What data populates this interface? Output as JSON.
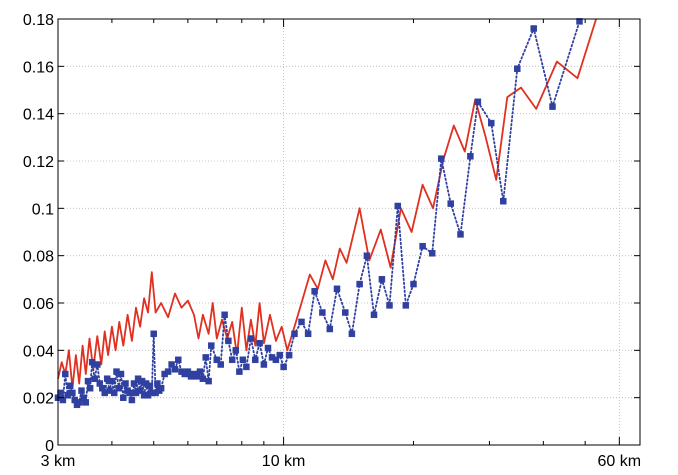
{
  "chart_data": {
    "type": "line",
    "title": "",
    "xlabel": "",
    "ylabel": "",
    "x_scale": "log",
    "xlim": [
      3,
      67
    ],
    "ylim": [
      0,
      0.18
    ],
    "grid": true,
    "legend": "none",
    "x_ticks": [
      {
        "value": 3,
        "label": "3 km"
      },
      {
        "value": 10,
        "label": "10 km"
      },
      {
        "value": 60,
        "label": "60 km"
      }
    ],
    "y_ticks": [
      {
        "value": 0,
        "label": "0"
      },
      {
        "value": 0.02,
        "label": "0.02"
      },
      {
        "value": 0.04,
        "label": "0.04"
      },
      {
        "value": 0.06,
        "label": "0.06"
      },
      {
        "value": 0.08,
        "label": "0.08"
      },
      {
        "value": 0.1,
        "label": "0.1"
      },
      {
        "value": 0.12,
        "label": "0.12"
      },
      {
        "value": 0.14,
        "label": "0.14"
      },
      {
        "value": 0.16,
        "label": "0.16"
      },
      {
        "value": 0.18,
        "label": "0.18"
      }
    ],
    "series": [
      {
        "color": "#e03020",
        "style": "solid",
        "marker": "none",
        "points": [
          [
            3.0,
            0.028
          ],
          [
            3.06,
            0.035
          ],
          [
            3.12,
            0.03
          ],
          [
            3.18,
            0.04
          ],
          [
            3.24,
            0.024
          ],
          [
            3.3,
            0.038
          ],
          [
            3.36,
            0.026
          ],
          [
            3.42,
            0.042
          ],
          [
            3.48,
            0.03
          ],
          [
            3.55,
            0.045
          ],
          [
            3.62,
            0.032
          ],
          [
            3.7,
            0.046
          ],
          [
            3.78,
            0.034
          ],
          [
            3.85,
            0.048
          ],
          [
            3.92,
            0.038
          ],
          [
            4.0,
            0.05
          ],
          [
            4.08,
            0.04
          ],
          [
            4.16,
            0.052
          ],
          [
            4.25,
            0.042
          ],
          [
            4.35,
            0.055
          ],
          [
            4.45,
            0.044
          ],
          [
            4.55,
            0.058
          ],
          [
            4.65,
            0.05
          ],
          [
            4.75,
            0.062
          ],
          [
            4.85,
            0.056
          ],
          [
            4.95,
            0.073
          ],
          [
            5.05,
            0.056
          ],
          [
            5.2,
            0.06
          ],
          [
            5.4,
            0.054
          ],
          [
            5.6,
            0.064
          ],
          [
            5.8,
            0.058
          ],
          [
            6.0,
            0.061
          ],
          [
            6.2,
            0.055
          ],
          [
            6.35,
            0.045
          ],
          [
            6.5,
            0.055
          ],
          [
            6.7,
            0.047
          ],
          [
            6.85,
            0.06
          ],
          [
            7.0,
            0.045
          ],
          [
            7.2,
            0.053
          ],
          [
            7.4,
            0.045
          ],
          [
            7.6,
            0.052
          ],
          [
            7.8,
            0.038
          ],
          [
            8.0,
            0.058
          ],
          [
            8.2,
            0.04
          ],
          [
            8.4,
            0.053
          ],
          [
            8.6,
            0.042
          ],
          [
            8.8,
            0.06
          ],
          [
            9.0,
            0.043
          ],
          [
            9.3,
            0.055
          ],
          [
            9.6,
            0.044
          ],
          [
            9.9,
            0.05
          ],
          [
            10.2,
            0.04
          ],
          [
            10.6,
            0.05
          ],
          [
            11.0,
            0.06
          ],
          [
            11.5,
            0.072
          ],
          [
            12.0,
            0.066
          ],
          [
            12.5,
            0.078
          ],
          [
            13.0,
            0.07
          ],
          [
            13.5,
            0.083
          ],
          [
            14.0,
            0.077
          ],
          [
            15.0,
            0.1
          ],
          [
            15.8,
            0.078
          ],
          [
            16.8,
            0.091
          ],
          [
            17.7,
            0.075
          ],
          [
            18.7,
            0.1
          ],
          [
            19.8,
            0.09
          ],
          [
            21.0,
            0.11
          ],
          [
            22.2,
            0.1
          ],
          [
            23.5,
            0.121
          ],
          [
            24.8,
            0.135
          ],
          [
            26.3,
            0.124
          ],
          [
            27.8,
            0.146
          ],
          [
            29.4,
            0.13
          ],
          [
            31.1,
            0.112
          ],
          [
            33.0,
            0.147
          ],
          [
            35.5,
            0.151
          ],
          [
            38.5,
            0.142
          ],
          [
            43.0,
            0.162
          ],
          [
            48.0,
            0.155
          ],
          [
            53.0,
            0.18
          ]
        ]
      },
      {
        "color": "#3040a0",
        "style": "dotted",
        "marker": "square",
        "points": [
          [
            3.0,
            0.02
          ],
          [
            3.04,
            0.022
          ],
          [
            3.08,
            0.019
          ],
          [
            3.12,
            0.03
          ],
          [
            3.16,
            0.021
          ],
          [
            3.2,
            0.025
          ],
          [
            3.24,
            0.022
          ],
          [
            3.28,
            0.019
          ],
          [
            3.32,
            0.017
          ],
          [
            3.36,
            0.018
          ],
          [
            3.4,
            0.023
          ],
          [
            3.44,
            0.02
          ],
          [
            3.48,
            0.018
          ],
          [
            3.52,
            0.027
          ],
          [
            3.56,
            0.024
          ],
          [
            3.6,
            0.035
          ],
          [
            3.65,
            0.028
          ],
          [
            3.7,
            0.034
          ],
          [
            3.75,
            0.026
          ],
          [
            3.8,
            0.024
          ],
          [
            3.85,
            0.022
          ],
          [
            3.9,
            0.028
          ],
          [
            3.95,
            0.023
          ],
          [
            4.0,
            0.027
          ],
          [
            4.05,
            0.022
          ],
          [
            4.1,
            0.031
          ],
          [
            4.15,
            0.024
          ],
          [
            4.2,
            0.03
          ],
          [
            4.25,
            0.02
          ],
          [
            4.3,
            0.026
          ],
          [
            4.35,
            0.023
          ],
          [
            4.4,
            0.022
          ],
          [
            4.45,
            0.019
          ],
          [
            4.5,
            0.026
          ],
          [
            4.55,
            0.022
          ],
          [
            4.6,
            0.028
          ],
          [
            4.65,
            0.023
          ],
          [
            4.7,
            0.027
          ],
          [
            4.75,
            0.021
          ],
          [
            4.8,
            0.026
          ],
          [
            4.85,
            0.021
          ],
          [
            4.9,
            0.025
          ],
          [
            4.95,
            0.022
          ],
          [
            5.0,
            0.047
          ],
          [
            5.05,
            0.022
          ],
          [
            5.1,
            0.026
          ],
          [
            5.15,
            0.023
          ],
          [
            5.2,
            0.024
          ],
          [
            5.3,
            0.03
          ],
          [
            5.4,
            0.031
          ],
          [
            5.5,
            0.034
          ],
          [
            5.6,
            0.032
          ],
          [
            5.7,
            0.036
          ],
          [
            5.8,
            0.031
          ],
          [
            5.9,
            0.03
          ],
          [
            6.0,
            0.031
          ],
          [
            6.1,
            0.029
          ],
          [
            6.2,
            0.03
          ],
          [
            6.3,
            0.029
          ],
          [
            6.4,
            0.031
          ],
          [
            6.5,
            0.028
          ],
          [
            6.6,
            0.037
          ],
          [
            6.7,
            0.027
          ],
          [
            6.8,
            0.042
          ],
          [
            7.0,
            0.036
          ],
          [
            7.15,
            0.034
          ],
          [
            7.3,
            0.055
          ],
          [
            7.45,
            0.044
          ],
          [
            7.6,
            0.036
          ],
          [
            7.75,
            0.04
          ],
          [
            7.9,
            0.031
          ],
          [
            8.05,
            0.036
          ],
          [
            8.2,
            0.033
          ],
          [
            8.4,
            0.045
          ],
          [
            8.6,
            0.036
          ],
          [
            8.8,
            0.043
          ],
          [
            9.0,
            0.034
          ],
          [
            9.2,
            0.041
          ],
          [
            9.4,
            0.037
          ],
          [
            9.6,
            0.036
          ],
          [
            9.8,
            0.038
          ],
          [
            10.0,
            0.033
          ],
          [
            10.3,
            0.038
          ],
          [
            10.6,
            0.047
          ],
          [
            11.0,
            0.052
          ],
          [
            11.4,
            0.047
          ],
          [
            11.8,
            0.065
          ],
          [
            12.3,
            0.056
          ],
          [
            12.8,
            0.049
          ],
          [
            13.3,
            0.066
          ],
          [
            13.9,
            0.056
          ],
          [
            14.4,
            0.047
          ],
          [
            15.0,
            0.068
          ],
          [
            15.6,
            0.08
          ],
          [
            16.2,
            0.055
          ],
          [
            16.9,
            0.07
          ],
          [
            17.6,
            0.059
          ],
          [
            18.4,
            0.101
          ],
          [
            19.2,
            0.059
          ],
          [
            20.0,
            0.068
          ],
          [
            21.0,
            0.084
          ],
          [
            22.1,
            0.081
          ],
          [
            23.2,
            0.121
          ],
          [
            24.4,
            0.102
          ],
          [
            25.7,
            0.089
          ],
          [
            27.1,
            0.122
          ],
          [
            28.2,
            0.145
          ],
          [
            30.3,
            0.136
          ],
          [
            32.3,
            0.103
          ],
          [
            34.8,
            0.159
          ],
          [
            38.0,
            0.176
          ],
          [
            42.0,
            0.143
          ],
          [
            48.5,
            0.179
          ]
        ]
      }
    ]
  }
}
